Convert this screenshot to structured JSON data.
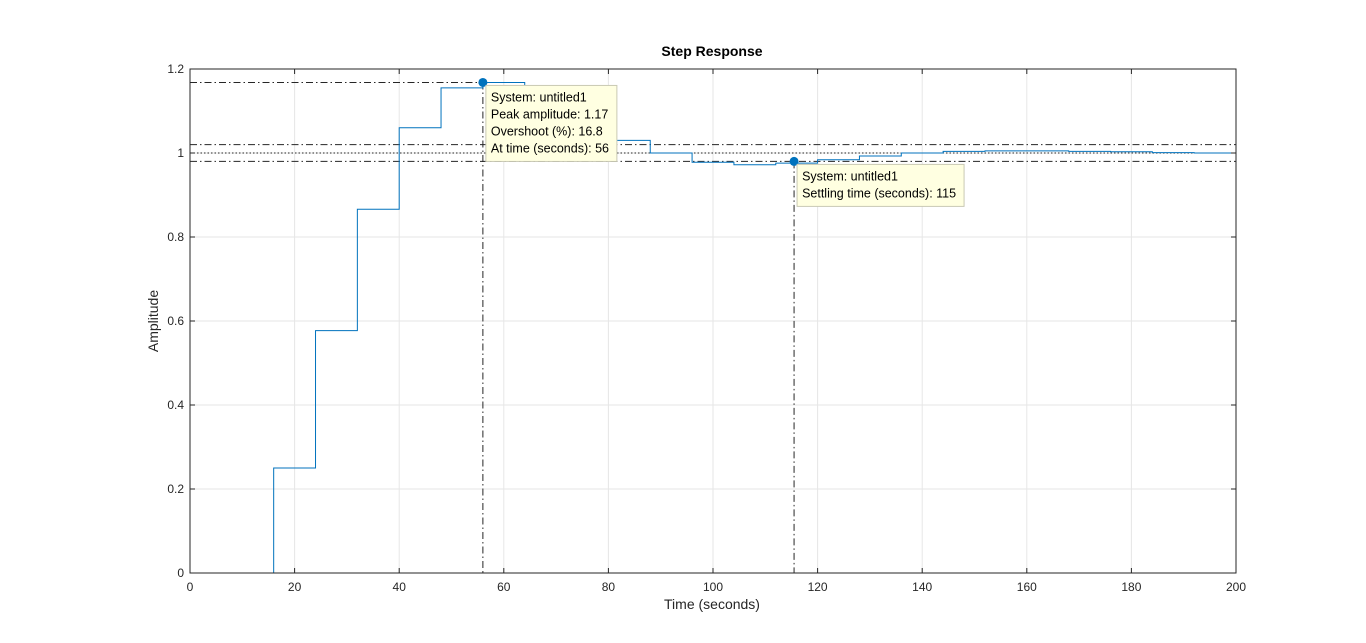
{
  "chart_data": {
    "type": "line",
    "title": "Step Response",
    "xlabel": "Time (seconds)",
    "ylabel": "Amplitude",
    "xlim": [
      0,
      200
    ],
    "ylim": [
      0,
      1.2
    ],
    "xticks": [
      0,
      20,
      40,
      60,
      80,
      100,
      120,
      140,
      160,
      180,
      200
    ],
    "yticks": [
      0,
      0.2,
      0.4,
      0.6,
      0.8,
      1,
      1.2
    ],
    "xtick_labels": [
      "0",
      "20",
      "40",
      "60",
      "80",
      "100",
      "120",
      "140",
      "160",
      "180",
      "200"
    ],
    "ytick_labels": [
      "0",
      "0.2",
      "0.4",
      "0.6",
      "0.8",
      "1",
      "1.2"
    ],
    "grid": true,
    "series": [
      {
        "step": "post",
        "color": "#0072BD",
        "x": [
          0,
          8,
          16,
          24,
          32,
          40,
          48,
          56,
          64,
          72,
          80,
          88,
          96,
          104,
          112,
          120,
          128,
          136,
          144,
          152,
          160,
          168,
          176,
          184,
          192,
          200
        ],
        "y": [
          0,
          0,
          0.25,
          0.577,
          0.866,
          1.06,
          1.155,
          1.168,
          1.125,
          1.08,
          1.03,
          1.0,
          0.978,
          0.972,
          0.976,
          0.984,
          0.993,
          1.0,
          1.004,
          1.005,
          1.005,
          1.004,
          1.003,
          1.001,
          1.0,
          1.0
        ]
      }
    ],
    "reference_lines": {
      "final_value": 1.0,
      "settling_band": [
        0.98,
        1.02
      ],
      "peak_value": 1.168,
      "peak_time": 56,
      "settling_time": 115.5,
      "settling_value": 0.98
    },
    "annotations": [
      {
        "marker": [
          56,
          1.168
        ],
        "lines": [
          "System: untitled1",
          "Peak amplitude: 1.17",
          "Overshoot (%): 16.8",
          "At time (seconds): 56"
        ]
      },
      {
        "marker": [
          115.5,
          0.98
        ],
        "lines": [
          "System: untitled1",
          "Settling time (seconds): 115"
        ]
      }
    ]
  }
}
